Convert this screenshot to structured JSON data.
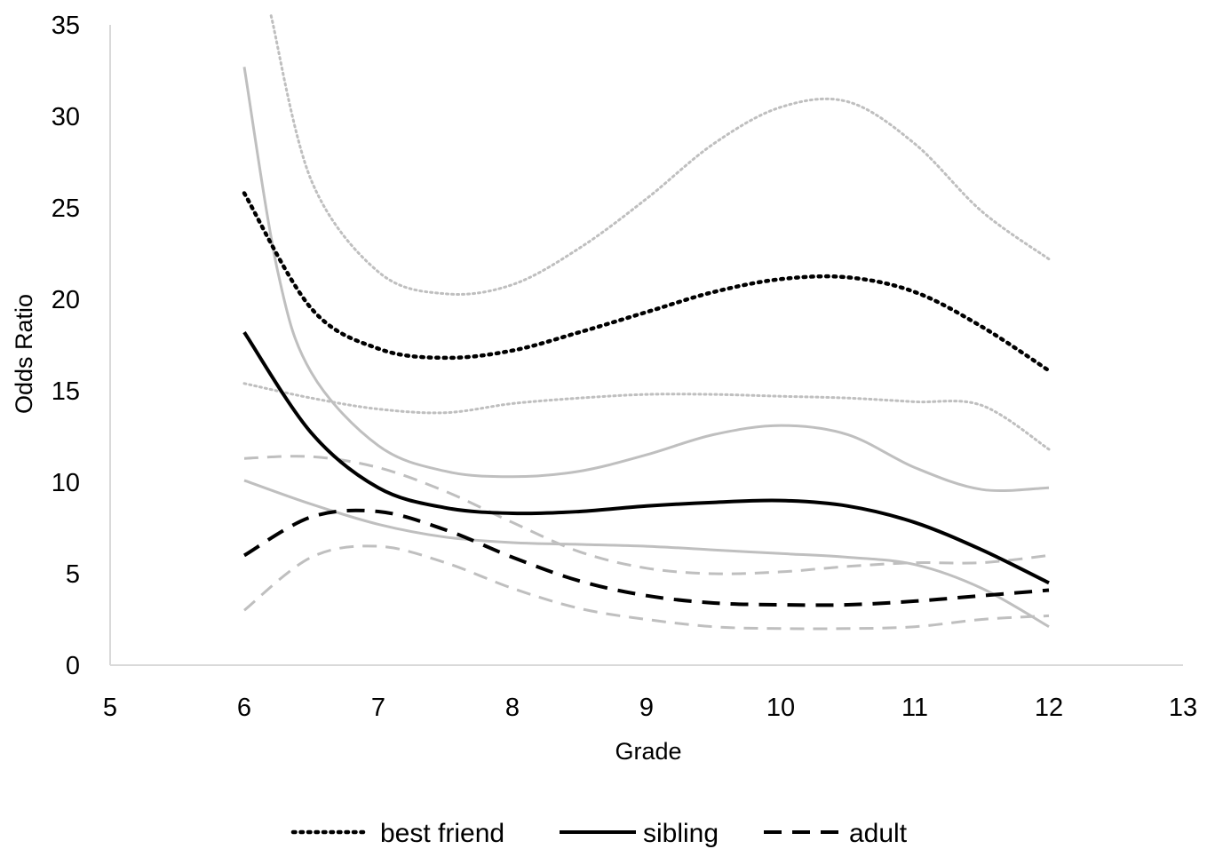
{
  "chart_data": {
    "type": "line",
    "xlabel": "Grade",
    "ylabel": "Odds Ratio",
    "xlim": [
      5,
      13
    ],
    "ylim": [
      0,
      35
    ],
    "x_ticks": [
      5,
      6,
      7,
      8,
      9,
      10,
      11,
      12,
      13
    ],
    "y_ticks": [
      0,
      5,
      10,
      15,
      20,
      25,
      30,
      35
    ],
    "grid": false,
    "legend_position": "bottom",
    "colors": {
      "estimate": "#000000",
      "interval": "#bfbfbf"
    },
    "series": [
      {
        "name": "best friend",
        "style": "dotted",
        "role": "estimate",
        "x": [
          6,
          6.5,
          7,
          7.5,
          8,
          8.5,
          9,
          9.5,
          10,
          10.5,
          11,
          11.5,
          12
        ],
        "y": [
          25.8,
          19.5,
          17.3,
          16.8,
          17.2,
          18.2,
          19.3,
          20.4,
          21.1,
          21.2,
          20.4,
          18.5,
          16.1
        ]
      },
      {
        "style": "dotted",
        "role": "upper",
        "x": [
          6.2,
          6.5,
          7,
          7.5,
          8,
          8.5,
          9,
          9.5,
          10,
          10.5,
          11,
          11.5,
          12
        ],
        "y": [
          35.5,
          26.5,
          21.5,
          20.3,
          20.8,
          22.8,
          25.5,
          28.5,
          30.5,
          30.8,
          28.5,
          24.8,
          22.2
        ]
      },
      {
        "style": "dotted",
        "role": "lower",
        "x": [
          6,
          6.5,
          7,
          7.5,
          8,
          8.5,
          9,
          9.5,
          10,
          10.5,
          11,
          11.5,
          12
        ],
        "y": [
          15.4,
          14.6,
          14.0,
          13.8,
          14.3,
          14.6,
          14.8,
          14.8,
          14.7,
          14.6,
          14.4,
          14.2,
          11.8
        ]
      },
      {
        "name": "sibling",
        "style": "solid",
        "role": "estimate",
        "x": [
          6,
          6.5,
          7,
          7.5,
          8,
          8.5,
          9,
          9.5,
          10,
          10.5,
          11,
          11.5,
          12
        ],
        "y": [
          18.2,
          12.7,
          9.7,
          8.6,
          8.3,
          8.4,
          8.7,
          8.9,
          9.0,
          8.7,
          7.8,
          6.3,
          4.5
        ]
      },
      {
        "style": "solid",
        "role": "upper",
        "x": [
          6,
          6.25,
          6.5,
          7,
          7.5,
          8,
          8.5,
          9,
          9.5,
          10,
          10.5,
          11,
          11.5,
          12
        ],
        "y": [
          32.7,
          21.5,
          16.0,
          12.0,
          10.6,
          10.3,
          10.6,
          11.5,
          12.6,
          13.1,
          12.6,
          10.8,
          9.6,
          9.7
        ]
      },
      {
        "style": "solid",
        "role": "lower",
        "x": [
          6,
          6.5,
          7,
          7.5,
          8,
          8.5,
          9,
          9.5,
          10,
          10.5,
          11,
          11.5,
          12
        ],
        "y": [
          10.1,
          8.8,
          7.7,
          7.0,
          6.7,
          6.6,
          6.5,
          6.3,
          6.1,
          5.9,
          5.5,
          4.2,
          2.1
        ]
      },
      {
        "name": "adult",
        "style": "dashed",
        "role": "estimate",
        "x": [
          6,
          6.5,
          7,
          7.5,
          8,
          8.5,
          9,
          9.5,
          10,
          10.5,
          11,
          11.5,
          12
        ],
        "y": [
          6.0,
          8.1,
          8.4,
          7.4,
          5.9,
          4.6,
          3.8,
          3.4,
          3.3,
          3.3,
          3.5,
          3.8,
          4.1
        ]
      },
      {
        "style": "dashed",
        "role": "upper",
        "x": [
          6,
          6.5,
          7,
          7.5,
          8,
          8.5,
          9,
          9.5,
          10,
          10.5,
          11,
          11.5,
          12
        ],
        "y": [
          11.3,
          11.4,
          10.8,
          9.5,
          7.8,
          6.2,
          5.3,
          5.0,
          5.1,
          5.4,
          5.6,
          5.6,
          6.0
        ]
      },
      {
        "style": "dashed",
        "role": "lower",
        "x": [
          6,
          6.5,
          7,
          7.5,
          8,
          8.5,
          9,
          9.5,
          10,
          10.5,
          11,
          11.5,
          12
        ],
        "y": [
          3.0,
          5.9,
          6.5,
          5.6,
          4.2,
          3.1,
          2.5,
          2.1,
          2.0,
          2.0,
          2.1,
          2.5,
          2.7
        ]
      }
    ]
  }
}
